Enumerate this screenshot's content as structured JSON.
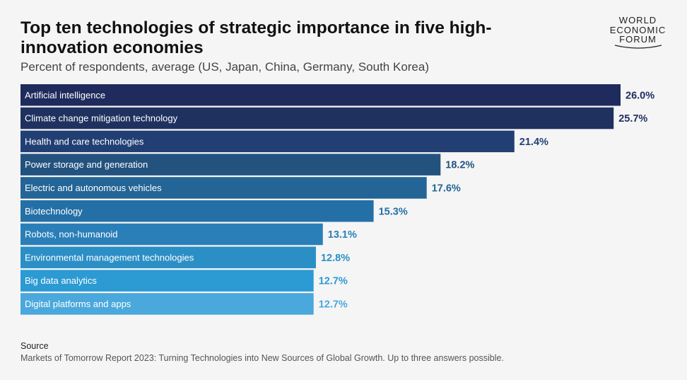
{
  "header": {
    "title": "Top ten technologies of strategic importance in five high-innovation economies",
    "subtitle": "Percent of respondents, average (US, Japan, China, Germany, South Korea)"
  },
  "logo": {
    "lines": [
      "WORLD",
      "ECONOMIC",
      "FORUM"
    ]
  },
  "footer": {
    "source_heading": "Source",
    "source_text": "Markets of Tomorrow Report 2023: Turning Technologies into New Sources of Global Growth. Up to three answers possible."
  },
  "chart_data": {
    "type": "bar",
    "orientation": "horizontal",
    "categories": [
      "Artificial intelligence",
      "Climate change mitigation technology",
      "Health and care technologies",
      "Power storage and generation",
      "Electric and autonomous vehicles",
      "Biotechnology",
      "Robots, non-humanoid",
      "Environmental management technologies",
      "Big data analytics",
      "Digital platforms and apps"
    ],
    "values": [
      26.0,
      25.7,
      21.4,
      18.2,
      17.6,
      15.3,
      13.1,
      12.8,
      12.7,
      12.7
    ],
    "value_labels": [
      "26.0%",
      "25.7%",
      "21.4%",
      "18.2%",
      "17.6%",
      "15.3%",
      "13.1%",
      "12.8%",
      "12.7%",
      "12.7%"
    ],
    "colors": [
      "#1f2b5c",
      "#1f315f",
      "#223f74",
      "#23527f",
      "#236596",
      "#2470a6",
      "#2a7fb8",
      "#2b8fc6",
      "#2c9ad3",
      "#4aa8dc"
    ],
    "xlim": [
      0,
      26.0
    ],
    "grid": false
  }
}
